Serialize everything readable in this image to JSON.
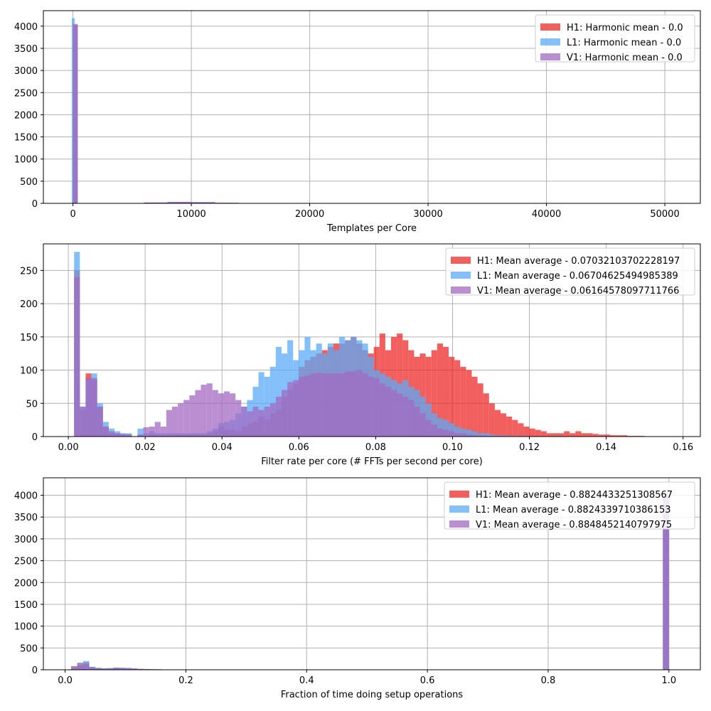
{
  "colors": {
    "H1": "#ee2a2a",
    "L1": "#5aaaf7",
    "V1": "#a36ac3",
    "grid": "#b0b0b0"
  },
  "chart_data": [
    {
      "type": "bar",
      "xlabel": "Templates per Core",
      "ylabel": "",
      "xlim": [
        -2500,
        53000
      ],
      "ylim": [
        0,
        4350
      ],
      "xticks": [
        0,
        10000,
        20000,
        30000,
        40000,
        50000
      ],
      "yticks": [
        0,
        500,
        1000,
        1500,
        2000,
        2500,
        3000,
        3500,
        4000
      ],
      "grid": true,
      "legend_position": "upper-right",
      "legend": [
        "H1: Harmonic mean  - 0.0",
        "L1: Harmonic mean  - 0.0",
        "V1: Harmonic mean  - 0.0"
      ],
      "series": [
        {
          "name": "H1",
          "bins": [
            [
              0,
              400,
              4020
            ],
            [
              3000,
              6000,
              6
            ],
            [
              6000,
              8000,
              18
            ],
            [
              8000,
              10000,
              30
            ],
            [
              10000,
              12000,
              26
            ],
            [
              12000,
              14000,
              12
            ],
            [
              14000,
              15500,
              4
            ]
          ]
        },
        {
          "name": "L1",
          "bins": [
            [
              -100,
              150,
              4180
            ],
            [
              150,
              400,
              4030
            ],
            [
              3000,
              6000,
              5
            ],
            [
              6000,
              8000,
              16
            ],
            [
              8000,
              10000,
              28
            ],
            [
              10000,
              12000,
              24
            ],
            [
              12000,
              14000,
              10
            ],
            [
              14000,
              15500,
              3
            ]
          ]
        },
        {
          "name": "V1",
          "bins": [
            [
              0,
              400,
              4050
            ],
            [
              3000,
              6000,
              6
            ],
            [
              6000,
              8000,
              20
            ],
            [
              8000,
              10000,
              34
            ],
            [
              10000,
              12000,
              28
            ],
            [
              12000,
              14000,
              12
            ],
            [
              14000,
              15500,
              4
            ]
          ]
        }
      ]
    },
    {
      "type": "bar",
      "xlabel": "Filter rate per core (# FFTs per second per core)",
      "ylabel": "",
      "xlim": [
        -0.0065,
        0.1645
      ],
      "ylim": [
        0,
        290
      ],
      "xticks": [
        0.0,
        0.02,
        0.04,
        0.06,
        0.08,
        0.1,
        0.12,
        0.14,
        0.16
      ],
      "xtick_labels": [
        "0.00",
        "0.02",
        "0.04",
        "0.06",
        "0.08",
        "0.10",
        "0.12",
        "0.14",
        "0.16"
      ],
      "yticks": [
        0,
        50,
        100,
        150,
        200,
        250
      ],
      "grid": true,
      "legend_position": "upper-right",
      "legend": [
        "H1: Mean average - 0.07032103702228197",
        "L1: Mean average - 0.06704625494985389",
        "V1: Mean average - 0.06164578097711766"
      ],
      "bin_start": 0.0,
      "bin_width": 0.0015,
      "series": [
        {
          "name": "H1",
          "values": [
            0,
            250,
            40,
            95,
            85,
            45,
            15,
            5,
            5,
            3,
            3,
            0,
            2,
            0,
            3,
            3,
            2,
            3,
            3,
            3,
            3,
            3,
            3,
            3,
            5,
            8,
            15,
            10,
            10,
            8,
            15,
            20,
            22,
            30,
            25,
            35,
            40,
            60,
            70,
            80,
            105,
            115,
            120,
            125,
            130,
            135,
            140,
            140,
            145,
            150,
            140,
            130,
            125,
            135,
            155,
            130,
            150,
            155,
            145,
            130,
            120,
            125,
            120,
            130,
            140,
            135,
            120,
            115,
            105,
            100,
            90,
            80,
            65,
            50,
            40,
            35,
            30,
            25,
            20,
            15,
            12,
            10,
            8,
            5,
            5,
            5,
            8,
            5,
            8,
            5,
            5,
            4,
            3,
            3,
            2,
            2,
            2,
            1,
            1,
            1,
            0,
            0,
            0,
            0,
            0
          ]
        },
        {
          "name": "L1",
          "values": [
            0,
            278,
            45,
            85,
            95,
            50,
            22,
            12,
            8,
            5,
            5,
            0,
            12,
            5,
            8,
            5,
            5,
            5,
            5,
            5,
            5,
            5,
            5,
            5,
            8,
            12,
            20,
            22,
            25,
            35,
            45,
            55,
            75,
            97,
            90,
            105,
            135,
            125,
            145,
            115,
            130,
            150,
            130,
            140,
            125,
            140,
            130,
            150,
            145,
            150,
            145,
            140,
            120,
            100,
            95,
            90,
            85,
            80,
            85,
            75,
            70,
            60,
            50,
            35,
            28,
            25,
            20,
            15,
            12,
            10,
            8,
            5,
            5,
            3,
            2,
            2,
            1,
            1,
            1,
            1,
            0,
            0,
            0,
            0,
            0,
            0,
            0,
            0,
            0,
            0,
            0,
            0,
            0,
            0,
            0,
            0,
            0,
            0,
            0,
            0,
            0,
            0,
            0,
            0,
            0
          ]
        },
        {
          "name": "V1",
          "values": [
            0,
            240,
            45,
            88,
            88,
            45,
            15,
            8,
            5,
            4,
            3,
            0,
            3,
            14,
            15,
            22,
            15,
            40,
            45,
            50,
            55,
            62,
            70,
            78,
            80,
            70,
            65,
            68,
            65,
            55,
            45,
            38,
            45,
            40,
            45,
            50,
            60,
            70,
            82,
            85,
            90,
            92,
            95,
            96,
            95,
            95,
            95,
            95,
            98,
            98,
            100,
            95,
            90,
            88,
            80,
            75,
            70,
            65,
            60,
            55,
            45,
            35,
            25,
            18,
            12,
            10,
            8,
            5,
            5,
            3,
            2,
            2,
            1,
            1,
            1,
            1,
            0,
            0,
            0,
            0,
            0,
            0,
            0,
            0,
            0,
            0,
            0,
            0,
            0,
            0,
            0,
            0,
            0,
            0,
            0,
            0,
            0,
            0,
            0,
            0,
            0,
            0,
            0,
            0,
            0
          ]
        }
      ]
    },
    {
      "type": "bar",
      "xlabel": "Fraction of time doing setup operations",
      "ylabel": "",
      "xlim": [
        -0.036,
        1.052
      ],
      "ylim": [
        0,
        4400
      ],
      "xticks": [
        0.0,
        0.2,
        0.4,
        0.6,
        0.8,
        1.0
      ],
      "xtick_labels": [
        "0.0",
        "0.2",
        "0.4",
        "0.6",
        "0.8",
        "1.0"
      ],
      "yticks": [
        0,
        500,
        1000,
        1500,
        2000,
        2500,
        3000,
        3500,
        4000
      ],
      "grid": true,
      "legend_position": "upper-right",
      "legend": [
        "H1: Mean average - 0.8824433251308567",
        "L1: Mean average - 0.8824339710386153",
        "V1: Mean average - 0.8848452140797975"
      ],
      "bin_start": 0.01,
      "bin_width": 0.01,
      "series": [
        {
          "name": "H1",
          "values": [
            80,
            160,
            170,
            60,
            40,
            30,
            35,
            45,
            45,
            40,
            30,
            20,
            15,
            12,
            10,
            8,
            5,
            5,
            5,
            5,
            3,
            3
          ],
          "extra": [
            [
              0.99,
              1.0,
              4000
            ]
          ]
        },
        {
          "name": "L1",
          "values": [
            60,
            150,
            200,
            70,
            45,
            35,
            40,
            50,
            40,
            35,
            30,
            18,
            14,
            12,
            10,
            8,
            6,
            5,
            5,
            5,
            4,
            3
          ],
          "extra": [
            [
              0.99,
              1.0,
              4050
            ]
          ]
        },
        {
          "name": "V1",
          "values": [
            40,
            110,
            130,
            50,
            40,
            30,
            30,
            45,
            40,
            35,
            25,
            18,
            14,
            10,
            10,
            8,
            5,
            5,
            5,
            5,
            3,
            3
          ],
          "extra": [
            [
              0.99,
              1.0,
              4030
            ]
          ]
        }
      ]
    }
  ]
}
